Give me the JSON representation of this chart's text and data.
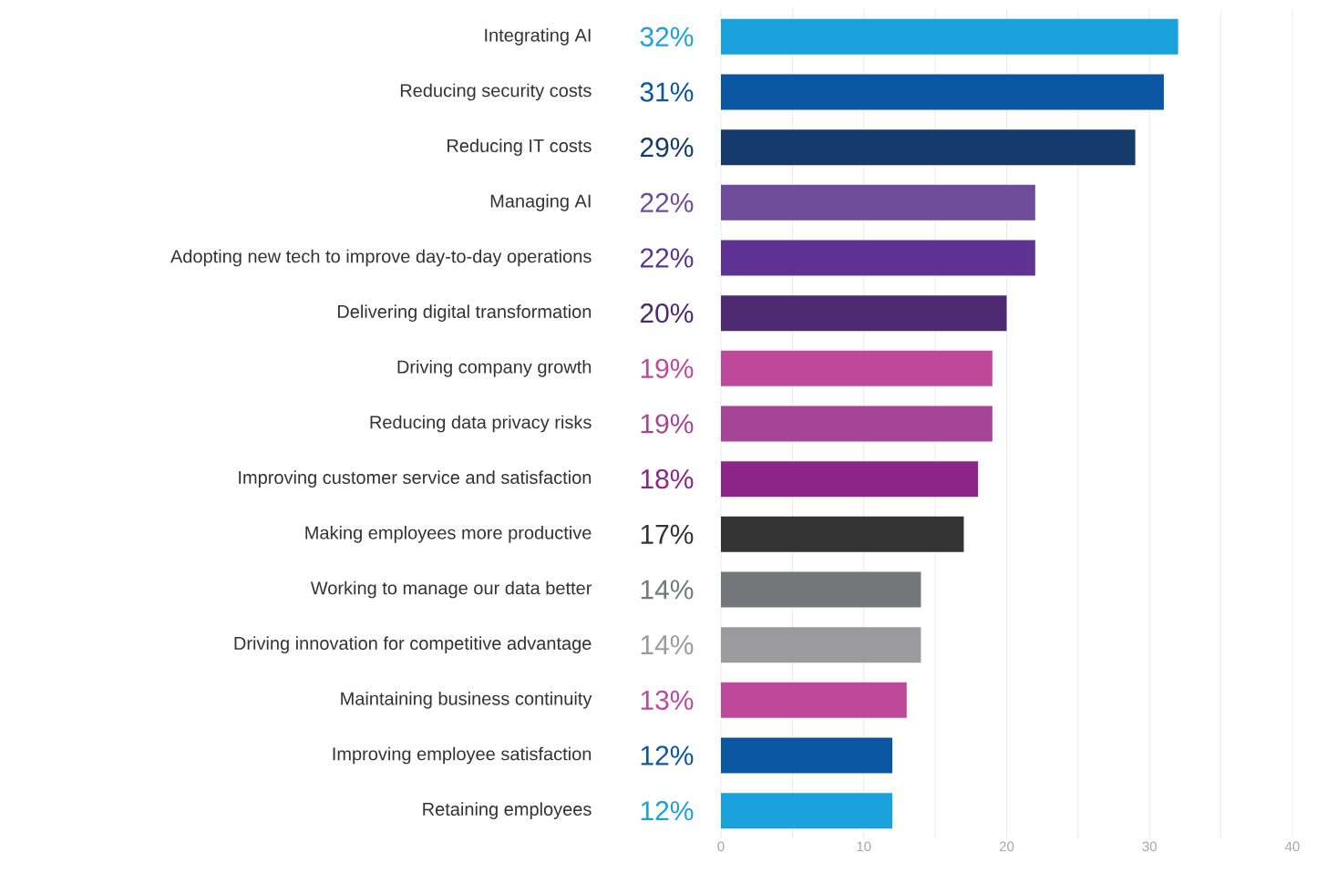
{
  "chart_data": {
    "type": "bar",
    "orientation": "horizontal",
    "categories": [
      "Integrating AI",
      "Reducing security costs",
      "Reducing IT costs",
      "Managing AI",
      "Adopting new tech to improve day-to-day operations",
      "Delivering digital transformation",
      "Driving company growth",
      "Reducing data privacy risks",
      "Improving customer service and satisfaction",
      "Making employees more productive",
      "Working to manage our data better",
      "Driving innovation for competitive advantage",
      "Maintaining business continuity",
      "Improving employee satisfaction",
      "Retaining employees"
    ],
    "values": [
      32,
      31,
      29,
      22,
      22,
      20,
      19,
      19,
      18,
      17,
      14,
      14,
      13,
      12,
      12
    ],
    "value_labels": [
      "32%",
      "31%",
      "29%",
      "22%",
      "22%",
      "20%",
      "19%",
      "19%",
      "18%",
      "17%",
      "14%",
      "14%",
      "13%",
      "12%",
      "12%"
    ],
    "colors": [
      "#1ba1dc",
      "#0a56a2",
      "#173a6c",
      "#6f4c9b",
      "#5e3393",
      "#4e2a72",
      "#c0489a",
      "#a64596",
      "#8e2589",
      "#333333",
      "#75777b",
      "#9b9b9e",
      "#c0489a",
      "#0a56a2",
      "#1ba1dc"
    ],
    "xlim": [
      0,
      40
    ],
    "xticks": [
      0,
      {
        "value": 5,
        "label": null
      },
      10,
      {
        "value": 15,
        "label": null
      },
      20,
      {
        "value": 25,
        "label": null
      },
      30,
      {
        "value": 35,
        "label": null
      },
      40
    ],
    "grid": "x"
  }
}
